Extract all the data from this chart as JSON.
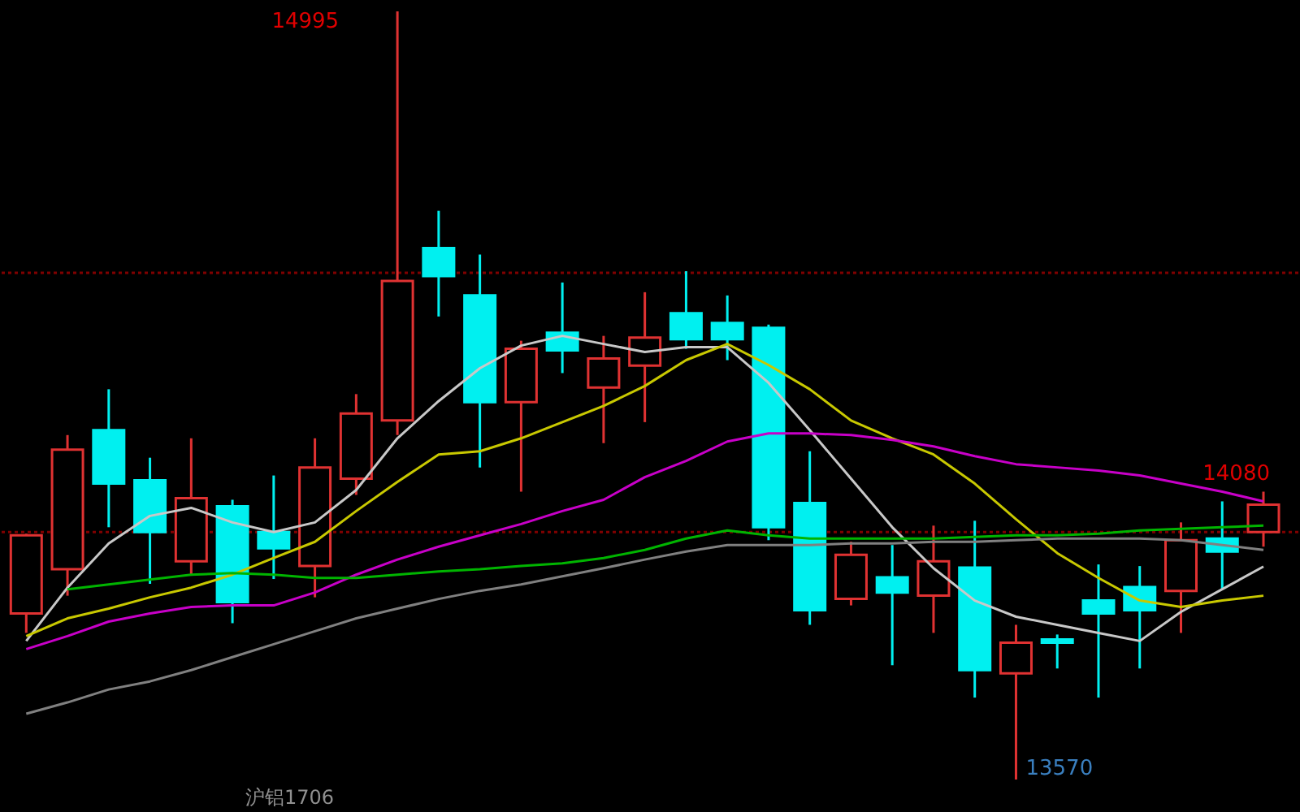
{
  "chart_data": {
    "type": "candlestick",
    "categories": [
      null,
      null,
      null,
      null,
      null,
      null,
      null,
      null,
      null,
      null,
      null,
      null,
      null,
      null,
      null,
      null,
      null,
      null,
      null,
      null,
      null,
      null,
      null,
      null,
      null,
      null,
      null,
      null,
      null,
      null,
      null
    ],
    "ohlc": [
      [
        13878,
        14026,
        13842,
        14023
      ],
      [
        13960,
        14209,
        13911,
        14182
      ],
      [
        14218,
        14294,
        14038,
        14119
      ],
      [
        14125,
        14167,
        13933,
        14029
      ],
      [
        13975,
        14203,
        13948,
        14092
      ],
      [
        14077,
        14089,
        13860,
        13899
      ],
      [
        14029,
        14134,
        13942,
        13999
      ],
      [
        13966,
        14203,
        13908,
        14149
      ],
      [
        14128,
        14285,
        14098,
        14249
      ],
      [
        14236,
        14995,
        14209,
        14495
      ],
      [
        14556,
        14625,
        14429,
        14504
      ],
      [
        14468,
        14544,
        14149,
        14270
      ],
      [
        14270,
        14384,
        14104,
        14369
      ],
      [
        14399,
        14492,
        14324,
        14366
      ],
      [
        14297,
        14393,
        14194,
        14351
      ],
      [
        14338,
        14474,
        14233,
        14390
      ],
      [
        14435,
        14513,
        14369,
        14387
      ],
      [
        14417,
        14468,
        14348,
        14387
      ],
      [
        14408,
        14414,
        14014,
        14038
      ],
      [
        14083,
        14179,
        13857,
        13884
      ],
      [
        13905,
        14011,
        13893,
        13987
      ],
      [
        13945,
        14005,
        13782,
        13917
      ],
      [
        13911,
        14041,
        13842,
        13975
      ],
      [
        13963,
        14050,
        13722,
        13773
      ],
      [
        13767,
        13857,
        13570,
        13824
      ],
      [
        13830,
        13839,
        13776,
        13824
      ],
      [
        13902,
        13969,
        13722,
        13878
      ],
      [
        13927,
        13966,
        13776,
        13884
      ],
      [
        13920,
        14047,
        13842,
        14014
      ],
      [
        14017,
        14086,
        13924,
        13993
      ],
      [
        14029,
        14104,
        14002,
        14080
      ]
    ],
    "colors": [
      "#e03232",
      "#e03232",
      "#00f0f0",
      "#00f0f0",
      "#e03232",
      "#00f0f0",
      "#00f0f0",
      "#e03232",
      "#e03232",
      "#e03232",
      "#00f0f0",
      "#00f0f0",
      "#e03232",
      "#00f0f0",
      "#e03232",
      "#e03232",
      "#00f0f0",
      "#00f0f0",
      "#00f0f0",
      "#00f0f0",
      "#e03232",
      "#00f0f0",
      "#e03232",
      "#00f0f0",
      "#e03232",
      "#00f0f0",
      "#00f0f0",
      "#00f0f0",
      "#e03232",
      "#00f0f0",
      "#e03232"
    ],
    "series": [
      {
        "type": "line",
        "color": "#c8c8c8",
        "values": [
          13827,
          13926,
          14008,
          14059,
          14074,
          14047,
          14029,
          14047,
          14107,
          14203,
          14272,
          14333,
          14375,
          14393,
          14378,
          14363,
          14372,
          14372,
          14306,
          14218,
          14128,
          14038,
          13962,
          13902,
          13872,
          13857,
          13842,
          13827,
          13881,
          13923,
          13965
        ]
      },
      {
        "type": "line",
        "color": "#c8c800",
        "values": [
          13836,
          13869,
          13887,
          13908,
          13926,
          13950,
          13981,
          14011,
          14068,
          14122,
          14173,
          14179,
          14203,
          14233,
          14263,
          14300,
          14348,
          14378,
          14339,
          14294,
          14236,
          14203,
          14173,
          14119,
          14053,
          13990,
          13944,
          13902,
          13890,
          13902,
          13911
        ]
      },
      {
        "type": "line",
        "color": "#c800c8",
        "values": [
          13812,
          13836,
          13863,
          13878,
          13890,
          13893,
          13893,
          13917,
          13950,
          13978,
          14002,
          14023,
          14044,
          14068,
          14089,
          14131,
          14161,
          14197,
          14212,
          14212,
          14209,
          14200,
          14188,
          14170,
          14155,
          14149,
          14143,
          14134,
          14119,
          14104,
          14086
        ]
      },
      {
        "type": "line",
        "color": "#00b400",
        "values": [
          null,
          13923,
          13932,
          13941,
          13950,
          13953,
          13950,
          13944,
          13944,
          13950,
          13956,
          13960,
          13966,
          13971,
          13981,
          13996,
          14017,
          14032,
          14023,
          14017,
          14017,
          14017,
          14017,
          14020,
          14023,
          14023,
          14026,
          14032,
          14035,
          14038,
          14041
        ]
      },
      {
        "type": "line",
        "color": "#808080",
        "values": [
          13692,
          13713,
          13737,
          13752,
          13773,
          13797,
          13821,
          13845,
          13869,
          13887,
          13905,
          13920,
          13932,
          13947,
          13962,
          13978,
          13993,
          14005,
          14005,
          14005,
          14008,
          14008,
          14011,
          14011,
          14014,
          14017,
          14017,
          14017,
          14014,
          14005,
          13996
        ]
      }
    ],
    "ref_lines": [
      {
        "axis": "y",
        "value": 14510,
        "color": "#800000",
        "line_style": "dotted"
      },
      {
        "axis": "y",
        "value": 14029,
        "color": "#800000",
        "line_style": "dotted"
      }
    ],
    "annotations": [
      "14995",
      "14080",
      "13570",
      "沪铝1706"
    ]
  }
}
